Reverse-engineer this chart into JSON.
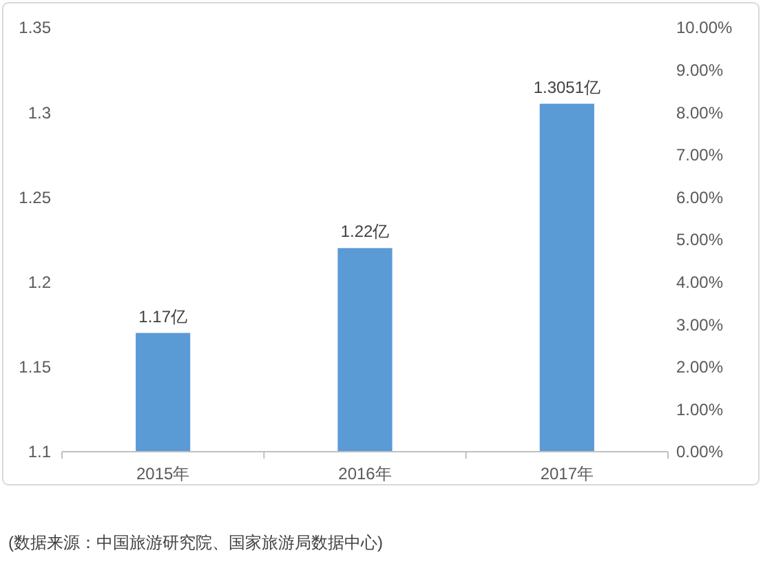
{
  "chart_data": {
    "type": "bar",
    "categories": [
      "2015年",
      "2016年",
      "2017年"
    ],
    "values": [
      1.17,
      1.22,
      1.3051
    ],
    "color": "#5b9bd5",
    "value_labels": [
      "1.17亿",
      "1.22亿",
      "1.3051亿"
    ],
    "ylim": [
      1.1,
      1.35
    ],
    "yticks": [
      1.1,
      1.15,
      1.2,
      1.25,
      1.3,
      1.35
    ],
    "y2lim": [
      0,
      10
    ],
    "y2ticks": [
      {
        "value": 0,
        "label": "0.00%"
      },
      {
        "value": 1,
        "label": "1.00%"
      },
      {
        "value": 2,
        "label": "2.00%"
      },
      {
        "value": 3,
        "label": "3.00%"
      },
      {
        "value": 4,
        "label": "4.00%"
      },
      {
        "value": 5,
        "label": "5.00%"
      },
      {
        "value": 6,
        "label": "6.00%"
      },
      {
        "value": 7,
        "label": "7.00%"
      },
      {
        "value": 8,
        "label": "8.00%"
      },
      {
        "value": 9,
        "label": "9.00%"
      },
      {
        "value": 10,
        "label": "10.00%"
      }
    ],
    "grid": false,
    "annotations": [
      "(数据来源：中国旅游研究院、国家旅游局数据中心)"
    ]
  }
}
